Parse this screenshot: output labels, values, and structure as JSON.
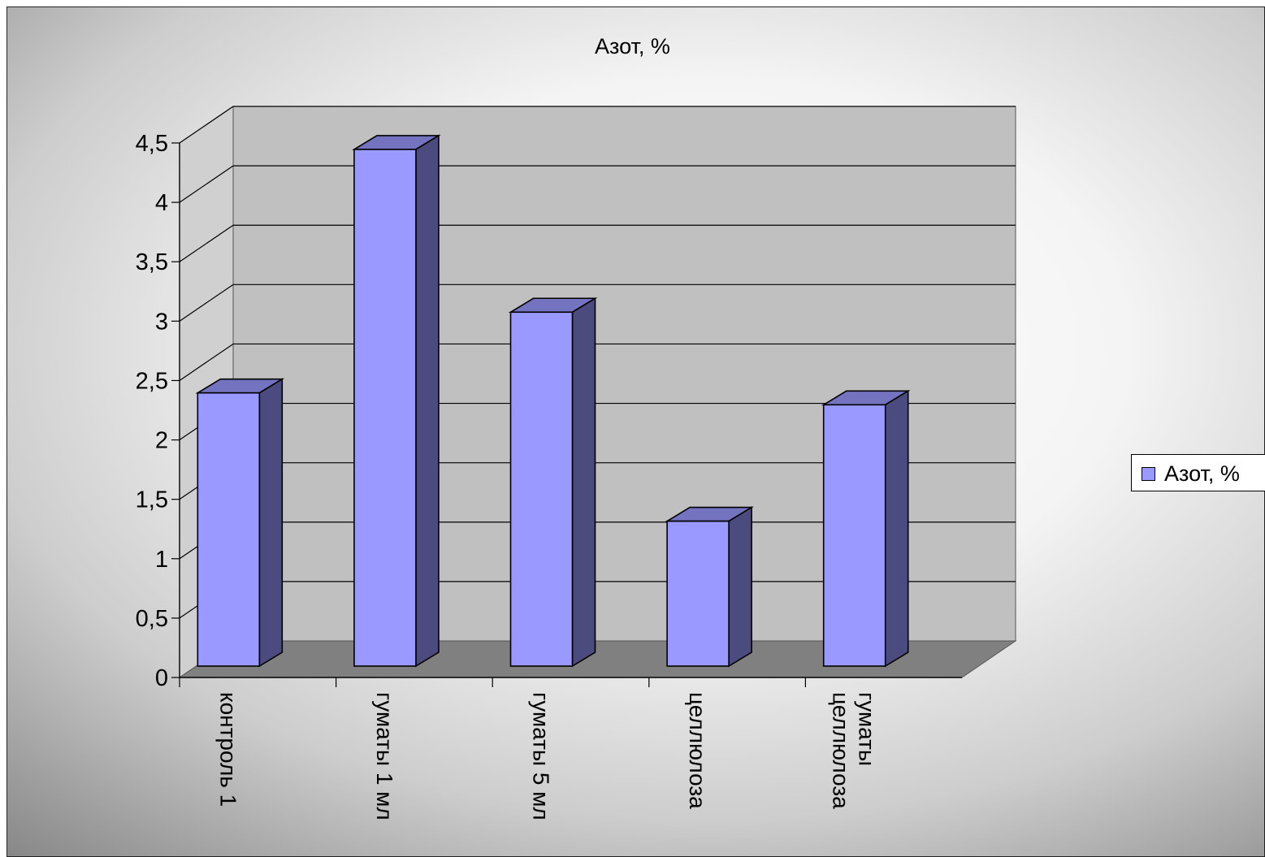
{
  "chart_data": {
    "type": "bar",
    "title": "Азот, %",
    "categories": [
      "контроль 1",
      "гуматы 1 мл",
      "гуматы 5 мл",
      "целлюлоза",
      "гуматы целлюлоза"
    ],
    "category_lines": [
      [
        "контроль 1"
      ],
      [
        "гуматы 1 мл"
      ],
      [
        "гуматы 5 мл"
      ],
      [
        "целлюлоза"
      ],
      [
        "гуматы",
        "целлюлоза"
      ]
    ],
    "series": [
      {
        "name": "Азот, %",
        "values": [
          2.3,
          4.35,
          2.98,
          1.22,
          2.2
        ]
      }
    ],
    "y_ticks": [
      "0",
      "0,5",
      "1",
      "1,5",
      "2",
      "2,5",
      "3",
      "3,5",
      "4",
      "4,5"
    ],
    "ylim": [
      0,
      4.5
    ],
    "xlabel": "",
    "ylabel": "",
    "grid": true,
    "style": "3d-column",
    "legend_position": "right",
    "colors": {
      "bar_front": "#9999ff",
      "bar_side": "#4b4b80",
      "bar_top": "#7373c0",
      "back_wall": "#c0c0c0",
      "side_wall": "#d0d0d0",
      "floor": "#808080"
    }
  }
}
